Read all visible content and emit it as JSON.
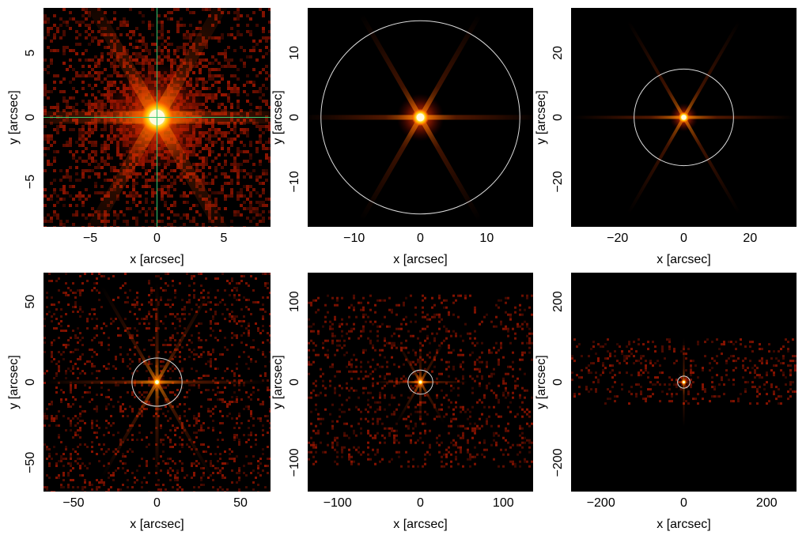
{
  "chart_data": [
    {
      "type": "heatmap",
      "xlabel": "x [arcsec]",
      "ylabel": "y [arcsec]",
      "xlim": [
        -8.5,
        8.5
      ],
      "ylim": [
        -8.5,
        8.5
      ],
      "xticks": [
        -5,
        0,
        5
      ],
      "yticks": [
        -5,
        0,
        5
      ],
      "xtick_labels": [
        "−5",
        "0",
        "5"
      ],
      "ytick_labels": [
        "−5",
        "0",
        "5"
      ],
      "source": {
        "x": 0,
        "y": 0
      },
      "crosshair": true,
      "circle_radius": null,
      "grid": false
    },
    {
      "type": "heatmap",
      "xlabel": "x [arcsec]",
      "ylabel": "y [arcsec]",
      "xlim": [
        -17,
        17
      ],
      "ylim": [
        -17,
        17
      ],
      "xticks": [
        -10,
        0,
        10
      ],
      "yticks": [
        -10,
        0,
        10
      ],
      "xtick_labels": [
        "−10",
        "0",
        "10"
      ],
      "ytick_labels": [
        "−10",
        "0",
        "10"
      ],
      "source": {
        "x": 0,
        "y": 0
      },
      "crosshair": false,
      "circle_radius": 15,
      "grid": false
    },
    {
      "type": "heatmap",
      "xlabel": "x [arcsec]",
      "ylabel": "y [arcsec]",
      "xlim": [
        -34,
        34
      ],
      "ylim": [
        -34,
        34
      ],
      "xticks": [
        -20,
        0,
        20
      ],
      "yticks": [
        -20,
        0,
        20
      ],
      "xtick_labels": [
        "−20",
        "0",
        "20"
      ],
      "ytick_labels": [
        "−20",
        "0",
        "20"
      ],
      "source": {
        "x": 0,
        "y": 0
      },
      "crosshair": false,
      "circle_radius": 15,
      "grid": false
    },
    {
      "type": "heatmap",
      "xlabel": "x [arcsec]",
      "ylabel": "y [arcsec]",
      "xlim": [
        -68,
        68
      ],
      "ylim": [
        -68,
        68
      ],
      "xticks": [
        -50,
        0,
        50
      ],
      "yticks": [
        -50,
        0,
        50
      ],
      "xtick_labels": [
        "−50",
        "0",
        "50"
      ],
      "ytick_labels": [
        "−50",
        "0",
        "50"
      ],
      "source": {
        "x": 0,
        "y": 0
      },
      "crosshair": false,
      "circle_radius": 15,
      "grid": false
    },
    {
      "type": "heatmap",
      "xlabel": "x [arcsec]",
      "ylabel": "y [arcsec]",
      "xlim": [
        -136,
        136
      ],
      "ylim": [
        -136,
        136
      ],
      "xticks": [
        -100,
        0,
        100
      ],
      "yticks": [
        -100,
        0,
        100
      ],
      "xtick_labels": [
        "−100",
        "0",
        "100"
      ],
      "ytick_labels": [
        "−100",
        "0",
        "100"
      ],
      "source": {
        "x": 0,
        "y": 0
      },
      "crosshair": false,
      "circle_radius": 15,
      "grid": false
    },
    {
      "type": "heatmap",
      "xlabel": "x [arcsec]",
      "ylabel": "y [arcsec]",
      "xlim": [
        -272,
        272
      ],
      "ylim": [
        -272,
        272
      ],
      "xticks": [
        -200,
        0,
        200
      ],
      "yticks": [
        -200,
        0,
        200
      ],
      "xtick_labels": [
        "−200",
        "0",
        "200"
      ],
      "ytick_labels": [
        "−200",
        "0",
        "200"
      ],
      "source": {
        "x": 0,
        "y": 0
      },
      "crosshair": false,
      "circle_radius": 15,
      "grid": false
    }
  ],
  "colors": {
    "background": "#000000",
    "core": "#fffbd0",
    "glow": "#ffb000",
    "halo": "#ff5a00",
    "noise": "#b01800",
    "crosshair": "#35c870",
    "circle": "#dddddd"
  }
}
